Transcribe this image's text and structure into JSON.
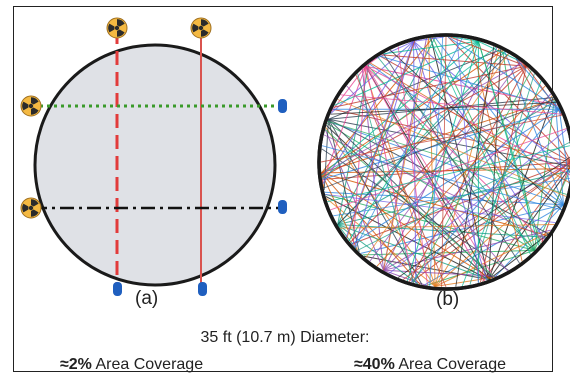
{
  "panels": {
    "a": {
      "label": "(a)",
      "coverage_value": "≈2%",
      "coverage_text": " Area Coverage"
    },
    "b": {
      "label": "(b)",
      "coverage_value": "≈40%",
      "coverage_text": " Area Coverage"
    }
  },
  "caption": "35 ft (10.7 m) Diameter:",
  "colors": {
    "circle_fill": "#dfe1e6",
    "circle_stroke": "#1a1a1a",
    "path_red_dashed": "#e23b3b",
    "path_red_solid": "#d9534f",
    "path_green_dotted": "#3a9a2a",
    "path_black_dashdot": "#111111",
    "source_icon": "#f4b942",
    "detector_icon": "#1f5fbf"
  },
  "icons": {
    "source": "radiation-source-icon",
    "detector": "detector-icon"
  }
}
